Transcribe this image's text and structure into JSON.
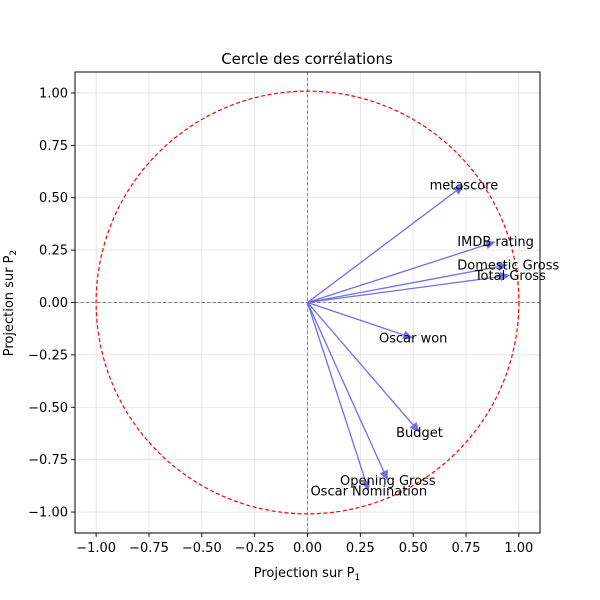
{
  "chart_data": {
    "type": "scatter",
    "title": "Cercle des corrélations",
    "xlabel": "Projection sur P",
    "xlabel_sub": "1",
    "ylabel": "Projection sur P",
    "ylabel_sub": "2",
    "xlim": [
      -1.1,
      1.1
    ],
    "ylim": [
      -1.1,
      1.1
    ],
    "xticks": [
      -1.0,
      -0.75,
      -0.5,
      -0.25,
      0.0,
      0.25,
      0.5,
      0.75,
      1.0
    ],
    "yticks": [
      -1.0,
      -0.75,
      -0.5,
      -0.25,
      0.0,
      0.25,
      0.5,
      0.75,
      1.0
    ],
    "xtick_labels": [
      "−1.00",
      "−0.75",
      "−0.50",
      "−0.25",
      "0.00",
      "0.25",
      "0.50",
      "0.75",
      "1.00"
    ],
    "ytick_labels": [
      "−1.00",
      "−0.75",
      "−0.50",
      "−0.25",
      "0.00",
      "0.25",
      "0.50",
      "0.75",
      "1.00"
    ],
    "grid": true,
    "circle": {
      "radius": 1.0,
      "color": "#ff0000",
      "style": "dashed"
    },
    "arrow_color": "#6666ee",
    "vectors": [
      {
        "label": "metascore",
        "x": 0.74,
        "y": 0.56
      },
      {
        "label": "IMDB rating",
        "x": 0.89,
        "y": 0.29
      },
      {
        "label": "Domestic Gross",
        "x": 0.95,
        "y": 0.18
      },
      {
        "label": "Total Gross",
        "x": 0.96,
        "y": 0.13
      },
      {
        "label": "Oscar won",
        "x": 0.5,
        "y": -0.17
      },
      {
        "label": "Budget",
        "x": 0.53,
        "y": -0.62
      },
      {
        "label": "Opening Gross",
        "x": 0.38,
        "y": -0.85
      },
      {
        "label": "Oscar Nomination",
        "x": 0.29,
        "y": -0.9
      }
    ]
  }
}
